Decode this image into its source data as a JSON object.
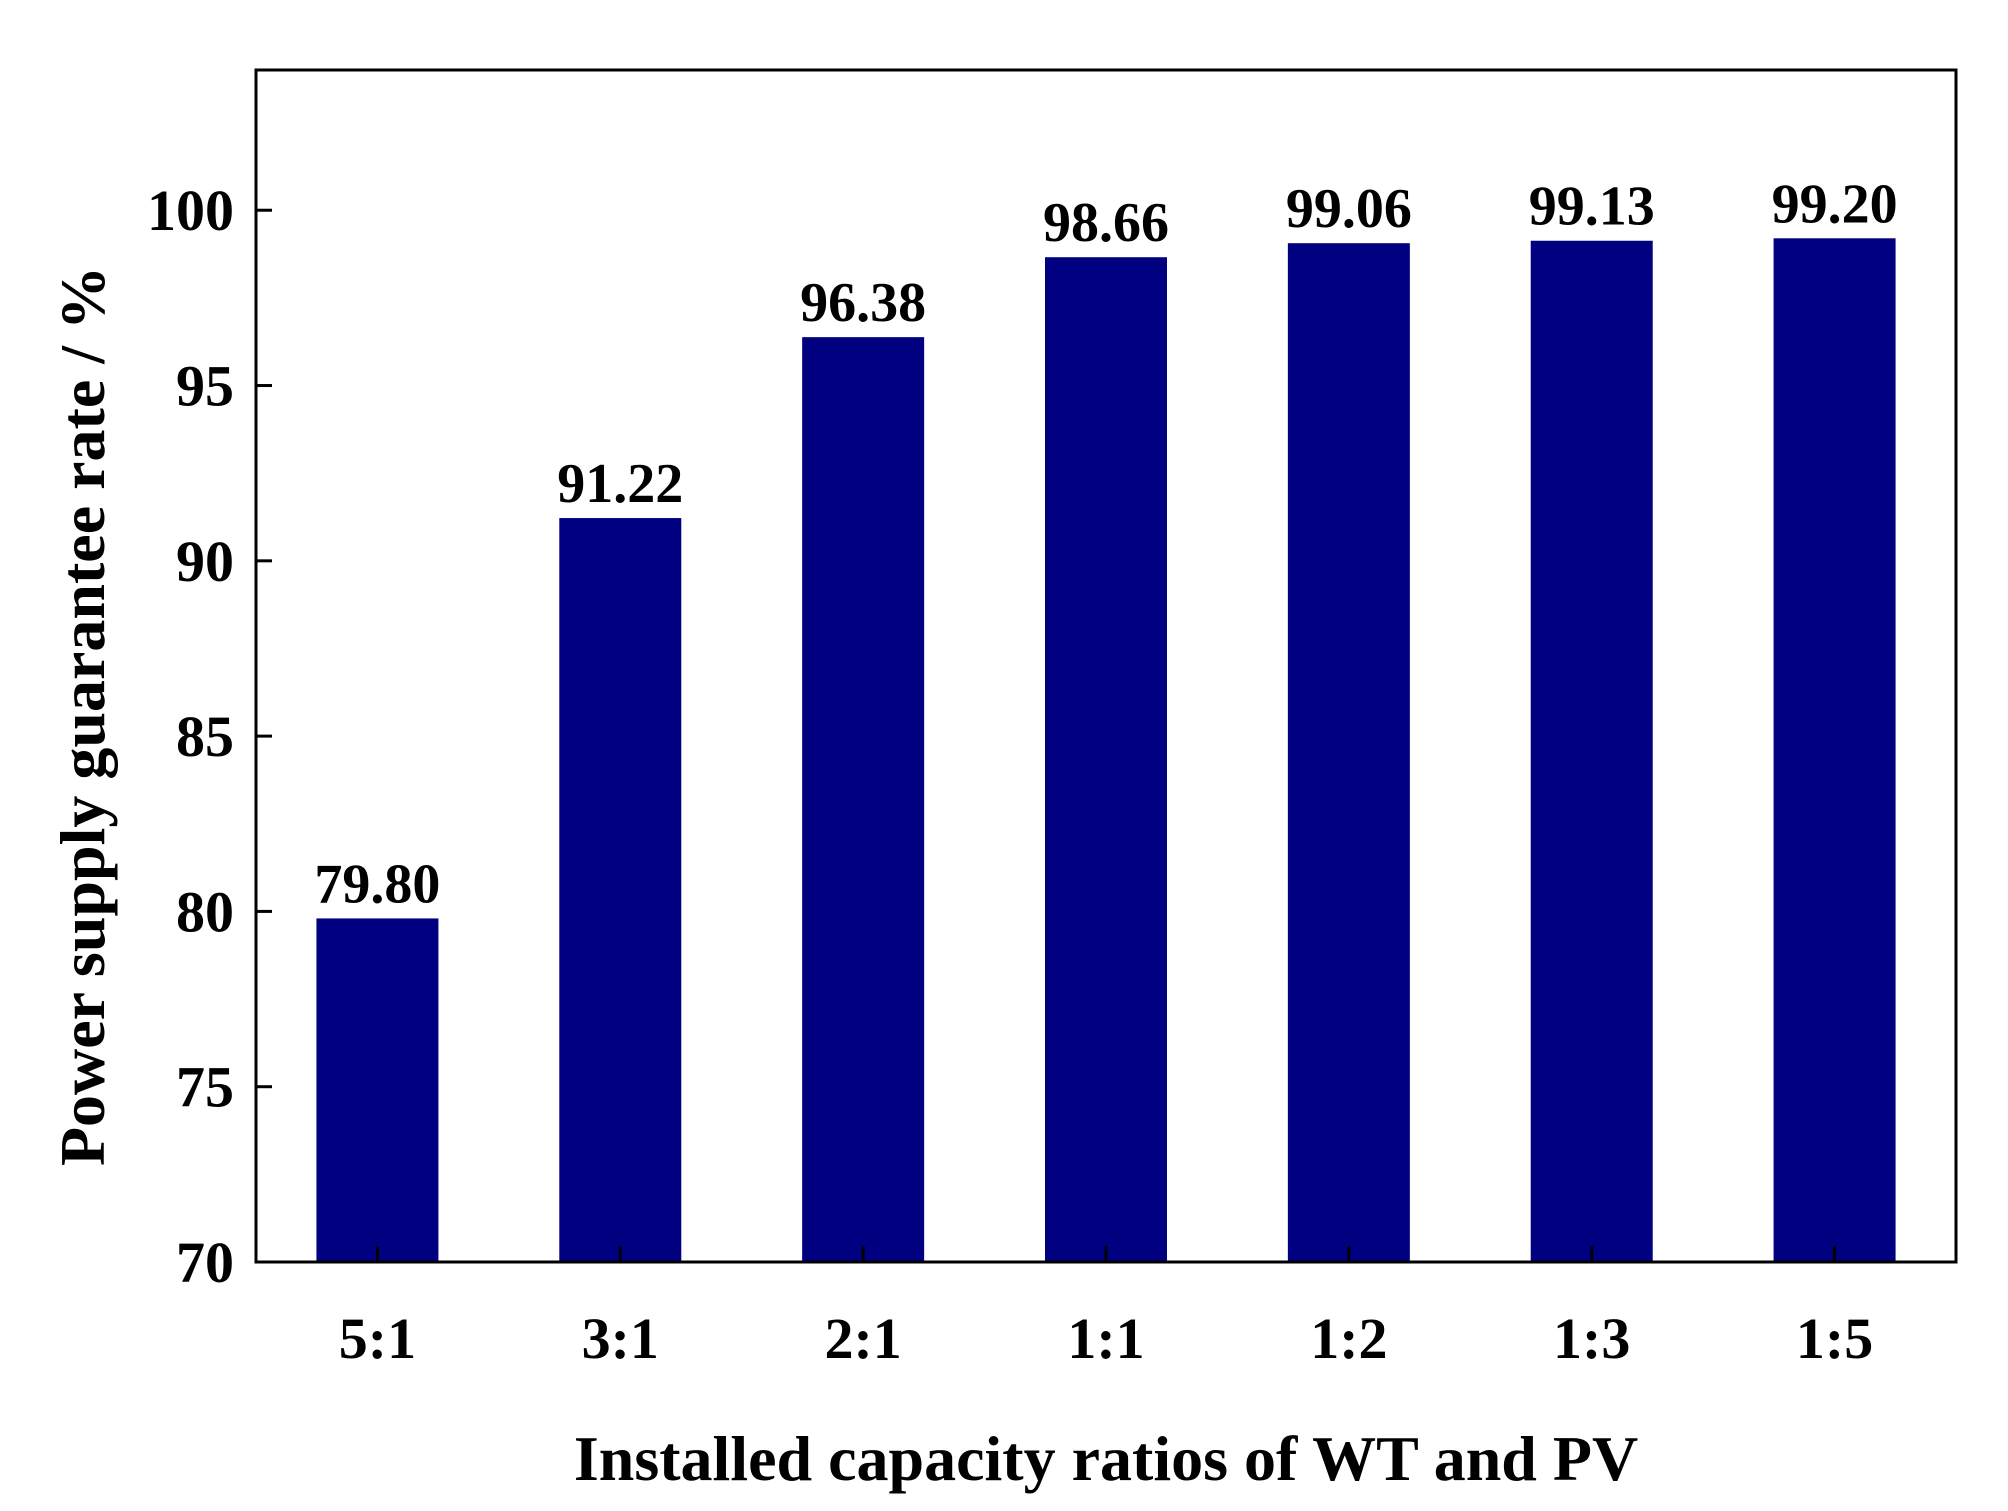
{
  "chart_data": {
    "type": "bar",
    "title": "",
    "xlabel": "Installed capacity ratios of WT and PV",
    "ylabel": "Power supply guarantee rate / %",
    "categories": [
      "5:1",
      "3:1",
      "2:1",
      "1:1",
      "1:2",
      "1:3",
      "1:5"
    ],
    "values": [
      79.8,
      91.22,
      96.38,
      98.66,
      99.06,
      99.13,
      99.2
    ],
    "value_labels": [
      "79.80",
      "91.22",
      "96.38",
      "98.66",
      "99.06",
      "99.13",
      "99.20"
    ],
    "ylim": [
      70,
      104
    ],
    "yticks": [
      70,
      75,
      80,
      85,
      90,
      95,
      100
    ],
    "grid": false,
    "legend": "none",
    "bar_color": "#000080"
  }
}
